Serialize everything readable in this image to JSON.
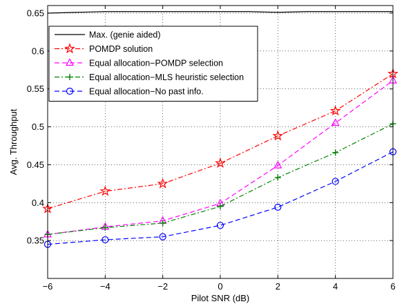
{
  "chart_data": {
    "type": "line",
    "title": "",
    "xlabel": "Pilot SNR (dB)",
    "ylabel": "Avg. Throughput",
    "xlim": [
      -6,
      6
    ],
    "ylim": [
      0.3,
      0.66
    ],
    "xticks": [
      -6,
      -4,
      -2,
      0,
      2,
      4,
      6
    ],
    "xtick_labels": [
      "−6",
      "−4",
      "−2",
      "0",
      "2",
      "4",
      "6"
    ],
    "yticks": [
      0.35,
      0.4,
      0.45,
      0.5,
      0.55,
      0.6,
      0.65
    ],
    "ytick_labels": [
      "0.35",
      "0.4",
      "0.45",
      "0.5",
      "0.55",
      "0.6",
      "0.65"
    ],
    "grid": true,
    "legend_position": "top-left",
    "x": [
      -6,
      -4,
      -2,
      0,
      2,
      4,
      6
    ],
    "series": [
      {
        "name": "Max. (genie aided)",
        "color": "#000000",
        "dash": "solid",
        "marker": "none",
        "x": [
          -6,
          -5,
          -4,
          -3,
          -2,
          -1,
          0,
          1,
          2,
          3,
          4,
          5,
          6
        ],
        "values": [
          0.65,
          0.651,
          0.652,
          0.652,
          0.652,
          0.652,
          0.652,
          0.652,
          0.651,
          0.652,
          0.652,
          0.652,
          0.652
        ]
      },
      {
        "name": "POMDP solution",
        "color": "#ff0000",
        "dash": "dashdot",
        "marker": "star",
        "values": [
          0.392,
          0.415,
          0.425,
          0.452,
          0.488,
          0.521,
          0.57
        ]
      },
      {
        "name": "Equal allocation−POMDP selection",
        "color": "#ff00ff",
        "dash": "dashed",
        "marker": "triangle",
        "values": [
          0.358,
          0.368,
          0.376,
          0.399,
          0.449,
          0.505,
          0.561
        ]
      },
      {
        "name": "Equal allocation−MLS heuristic selection",
        "color": "#008000",
        "dash": "dashdot",
        "marker": "plus",
        "values": [
          0.358,
          0.367,
          0.373,
          0.395,
          0.433,
          0.466,
          0.504
        ]
      },
      {
        "name": "Equal allocation−No past info.",
        "color": "#0000ff",
        "dash": "dashed",
        "marker": "circle",
        "values": [
          0.345,
          0.351,
          0.355,
          0.37,
          0.394,
          0.428,
          0.467
        ]
      }
    ]
  }
}
